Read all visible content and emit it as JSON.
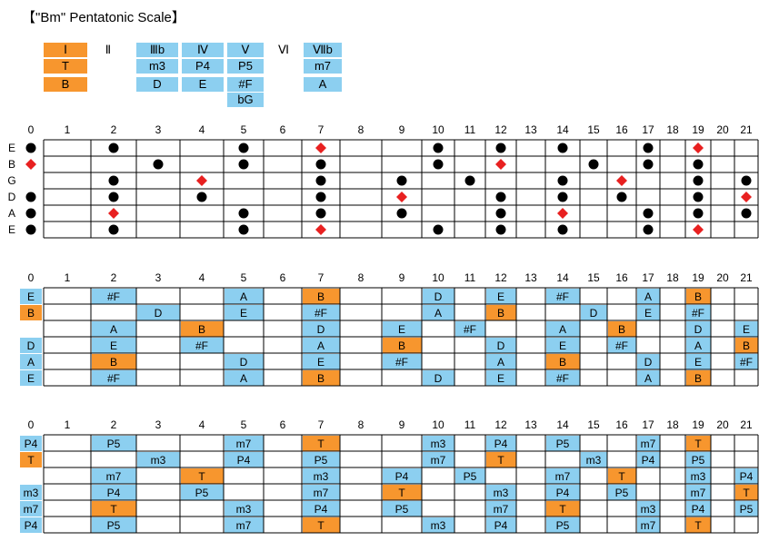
{
  "title": "【\"Bm\" Pentatonic Scale】",
  "colors": {
    "root": "#f7962e",
    "scale": "#8ccff0",
    "dot": "#000000",
    "root_marker": "#e82020",
    "grid": "#000000"
  },
  "legend": [
    {
      "degree": "Ⅰ",
      "labels": [
        "Ⅰ",
        "T",
        "B"
      ],
      "style": "orange"
    },
    {
      "degree": "Ⅱ",
      "labels": [
        "Ⅱ"
      ],
      "style": "plain"
    },
    {
      "degree": "Ⅲb",
      "labels": [
        "Ⅲb",
        "m3",
        "D"
      ],
      "style": "blue"
    },
    {
      "degree": "Ⅳ",
      "labels": [
        "Ⅳ",
        "P4",
        "E"
      ],
      "style": "blue"
    },
    {
      "degree": "Ⅴ",
      "labels": [
        "Ⅴ",
        "P5",
        "#F",
        "bG"
      ],
      "style": "blue"
    },
    {
      "degree": "Ⅵ",
      "labels": [
        "Ⅵ"
      ],
      "style": "plain"
    },
    {
      "degree": "Ⅶb",
      "labels": [
        "Ⅶb",
        "m7",
        "A"
      ],
      "style": "blue"
    }
  ],
  "fret_numbers": [
    "0",
    "1",
    "2",
    "3",
    "4",
    "5",
    "6",
    "7",
    "8",
    "9",
    "10",
    "11",
    "12",
    "13",
    "14",
    "15",
    "16",
    "17",
    "18",
    "19",
    "20",
    "21"
  ],
  "string_names": [
    "E",
    "B",
    "G",
    "D",
    "A",
    "E"
  ],
  "dot_diagram": {
    "strings": [
      {
        "name": "E",
        "dots": [
          0,
          2,
          5,
          10,
          12,
          14,
          17
        ],
        "roots": [
          7,
          19
        ]
      },
      {
        "name": "B",
        "dots": [
          3,
          5,
          7,
          10,
          15,
          17,
          19
        ],
        "roots": [
          0,
          12
        ]
      },
      {
        "name": "G",
        "dots": [
          2,
          7,
          9,
          11,
          14,
          19,
          21
        ],
        "roots": [
          4,
          16
        ]
      },
      {
        "name": "D",
        "dots": [
          0,
          2,
          4,
          7,
          12,
          14,
          16,
          19
        ],
        "roots": [
          9,
          21
        ]
      },
      {
        "name": "A",
        "dots": [
          0,
          5,
          7,
          9,
          12,
          17,
          19,
          21
        ],
        "roots": [
          2,
          14
        ]
      },
      {
        "name": "E",
        "dots": [
          0,
          2,
          5,
          10,
          12,
          14,
          17
        ],
        "roots": [
          7,
          19
        ]
      }
    ]
  },
  "note_diagram": {
    "strings": [
      {
        "cells": [
          {
            "f": 0,
            "t": "E"
          },
          {
            "f": 2,
            "t": "#F"
          },
          {
            "f": 5,
            "t": "A"
          },
          {
            "f": 7,
            "t": "B",
            "r": true
          },
          {
            "f": 10,
            "t": "D"
          },
          {
            "f": 12,
            "t": "E"
          },
          {
            "f": 14,
            "t": "#F"
          },
          {
            "f": 17,
            "t": "A"
          },
          {
            "f": 19,
            "t": "B",
            "r": true
          }
        ]
      },
      {
        "cells": [
          {
            "f": 0,
            "t": "B",
            "r": true
          },
          {
            "f": 3,
            "t": "D"
          },
          {
            "f": 5,
            "t": "E"
          },
          {
            "f": 7,
            "t": "#F"
          },
          {
            "f": 10,
            "t": "A"
          },
          {
            "f": 12,
            "t": "B",
            "r": true
          },
          {
            "f": 15,
            "t": "D"
          },
          {
            "f": 17,
            "t": "E"
          },
          {
            "f": 19,
            "t": "#F"
          }
        ]
      },
      {
        "cells": [
          {
            "f": 2,
            "t": "A"
          },
          {
            "f": 4,
            "t": "B",
            "r": true
          },
          {
            "f": 7,
            "t": "D"
          },
          {
            "f": 9,
            "t": "E"
          },
          {
            "f": 11,
            "t": "#F"
          },
          {
            "f": 14,
            "t": "A"
          },
          {
            "f": 16,
            "t": "B",
            "r": true
          },
          {
            "f": 19,
            "t": "D"
          },
          {
            "f": 21,
            "t": "E"
          }
        ]
      },
      {
        "cells": [
          {
            "f": 0,
            "t": "D"
          },
          {
            "f": 2,
            "t": "E"
          },
          {
            "f": 4,
            "t": "#F"
          },
          {
            "f": 7,
            "t": "A"
          },
          {
            "f": 9,
            "t": "B",
            "r": true
          },
          {
            "f": 12,
            "t": "D"
          },
          {
            "f": 14,
            "t": "E"
          },
          {
            "f": 16,
            "t": "#F"
          },
          {
            "f": 19,
            "t": "A"
          },
          {
            "f": 21,
            "t": "B",
            "r": true
          }
        ]
      },
      {
        "cells": [
          {
            "f": 0,
            "t": "A"
          },
          {
            "f": 2,
            "t": "B",
            "r": true
          },
          {
            "f": 5,
            "t": "D"
          },
          {
            "f": 7,
            "t": "E"
          },
          {
            "f": 9,
            "t": "#F"
          },
          {
            "f": 12,
            "t": "A"
          },
          {
            "f": 14,
            "t": "B",
            "r": true
          },
          {
            "f": 17,
            "t": "D"
          },
          {
            "f": 19,
            "t": "E"
          },
          {
            "f": 21,
            "t": "#F"
          }
        ]
      },
      {
        "cells": [
          {
            "f": 0,
            "t": "E"
          },
          {
            "f": 2,
            "t": "#F"
          },
          {
            "f": 5,
            "t": "A"
          },
          {
            "f": 7,
            "t": "B",
            "r": true
          },
          {
            "f": 10,
            "t": "D"
          },
          {
            "f": 12,
            "t": "E"
          },
          {
            "f": 14,
            "t": "#F"
          },
          {
            "f": 17,
            "t": "A"
          },
          {
            "f": 19,
            "t": "B",
            "r": true
          }
        ]
      }
    ]
  },
  "interval_diagram": {
    "strings": [
      {
        "cells": [
          {
            "f": 0,
            "t": "P4"
          },
          {
            "f": 2,
            "t": "P5"
          },
          {
            "f": 5,
            "t": "m7"
          },
          {
            "f": 7,
            "t": "T",
            "r": true
          },
          {
            "f": 10,
            "t": "m3"
          },
          {
            "f": 12,
            "t": "P4"
          },
          {
            "f": 14,
            "t": "P5"
          },
          {
            "f": 17,
            "t": "m7"
          },
          {
            "f": 19,
            "t": "T",
            "r": true
          }
        ]
      },
      {
        "cells": [
          {
            "f": 0,
            "t": "T",
            "r": true
          },
          {
            "f": 3,
            "t": "m3"
          },
          {
            "f": 5,
            "t": "P4"
          },
          {
            "f": 7,
            "t": "P5"
          },
          {
            "f": 10,
            "t": "m7"
          },
          {
            "f": 12,
            "t": "T",
            "r": true
          },
          {
            "f": 15,
            "t": "m3"
          },
          {
            "f": 17,
            "t": "P4"
          },
          {
            "f": 19,
            "t": "P5"
          }
        ]
      },
      {
        "cells": [
          {
            "f": 2,
            "t": "m7"
          },
          {
            "f": 4,
            "t": "T",
            "r": true
          },
          {
            "f": 7,
            "t": "m3"
          },
          {
            "f": 9,
            "t": "P4"
          },
          {
            "f": 11,
            "t": "P5"
          },
          {
            "f": 14,
            "t": "m7"
          },
          {
            "f": 16,
            "t": "T",
            "r": true
          },
          {
            "f": 19,
            "t": "m3"
          },
          {
            "f": 21,
            "t": "P4"
          }
        ]
      },
      {
        "cells": [
          {
            "f": 0,
            "t": "m3"
          },
          {
            "f": 2,
            "t": "P4"
          },
          {
            "f": 4,
            "t": "P5"
          },
          {
            "f": 7,
            "t": "m7"
          },
          {
            "f": 9,
            "t": "T",
            "r": true
          },
          {
            "f": 12,
            "t": "m3"
          },
          {
            "f": 14,
            "t": "P4"
          },
          {
            "f": 16,
            "t": "P5"
          },
          {
            "f": 19,
            "t": "m7"
          },
          {
            "f": 21,
            "t": "T",
            "r": true
          }
        ]
      },
      {
        "cells": [
          {
            "f": 0,
            "t": "m7"
          },
          {
            "f": 2,
            "t": "T",
            "r": true
          },
          {
            "f": 5,
            "t": "m3"
          },
          {
            "f": 7,
            "t": "P4"
          },
          {
            "f": 9,
            "t": "P5"
          },
          {
            "f": 12,
            "t": "m7"
          },
          {
            "f": 14,
            "t": "T",
            "r": true
          },
          {
            "f": 17,
            "t": "m3"
          },
          {
            "f": 19,
            "t": "P4"
          },
          {
            "f": 21,
            "t": "P5"
          }
        ]
      },
      {
        "cells": [
          {
            "f": 0,
            "t": "P4"
          },
          {
            "f": 2,
            "t": "P5"
          },
          {
            "f": 5,
            "t": "m7"
          },
          {
            "f": 7,
            "t": "T",
            "r": true
          },
          {
            "f": 10,
            "t": "m3"
          },
          {
            "f": 12,
            "t": "P4"
          },
          {
            "f": 14,
            "t": "P5"
          },
          {
            "f": 17,
            "t": "m7"
          },
          {
            "f": 19,
            "t": "T",
            "r": true
          }
        ]
      }
    ]
  }
}
